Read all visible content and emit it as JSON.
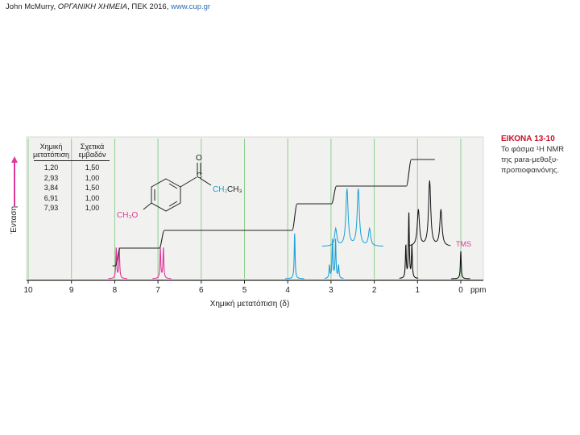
{
  "citation": {
    "author": "John McMurry,",
    "title": "ΟΡΓΑΝΙΚΗ ΧΗΜΕΙΑ",
    "publisher": ", ΠΕΚ 2016,",
    "url": "www.cup.gr"
  },
  "caption": {
    "title": "ΕΙΚΟΝΑ 13-10",
    "line1": "Το φάσμα ¹H NMR",
    "line2": "της para-μεθοξυ-",
    "line3": "προπιοφαινόνης."
  },
  "table": {
    "col1_header_1": "Χημική",
    "col1_header_2": "μετατόπιση",
    "col2_header_1": "Σχετικά",
    "col2_header_2": "εμβαδόν",
    "rows": [
      {
        "shift": "1,20",
        "area": "1,50"
      },
      {
        "shift": "2,93",
        "area": "1,00"
      },
      {
        "shift": "3,84",
        "area": "1,50"
      },
      {
        "shift": "6,91",
        "area": "1,00"
      },
      {
        "shift": "7,93",
        "area": "1,00"
      }
    ]
  },
  "structure": {
    "oxygen": "O",
    "carbon": "C",
    "ch2": "CH₂",
    "ch3_end": "CH₃",
    "methoxy": "CH₃O"
  },
  "chart_data": {
    "type": "line",
    "xlabel": "Χημική μετατόπιση (δ)",
    "ylabel": "Ένταση",
    "x_unit": "ppm",
    "x_ticks": [
      "10",
      "9",
      "8",
      "7",
      "6",
      "5",
      "4",
      "3",
      "2",
      "1",
      "0"
    ],
    "xlim": [
      10,
      0
    ],
    "tms_label": "TMS",
    "peaks": [
      {
        "shift": 7.93,
        "multiplicity": "doublet",
        "color": "#e0389a"
      },
      {
        "shift": 6.91,
        "multiplicity": "doublet",
        "color": "#e0389a"
      },
      {
        "shift": 3.84,
        "multiplicity": "singlet",
        "color": "#1aa0d8"
      },
      {
        "shift": 2.93,
        "multiplicity": "quartet",
        "color": "#1aa0d8"
      },
      {
        "shift": 1.2,
        "multiplicity": "triplet",
        "color": "#111111"
      },
      {
        "shift": 0.0,
        "multiplicity": "singlet",
        "color": "#111111"
      }
    ],
    "grid": true,
    "colors": {
      "grid": "#8fcf8f",
      "pink": "#e0389a",
      "blue": "#1aa0d8",
      "black": "#111111",
      "panel": "#f1f1ef"
    }
  }
}
